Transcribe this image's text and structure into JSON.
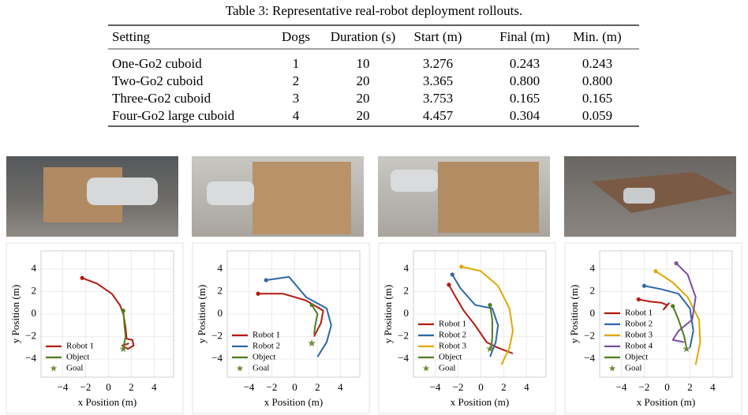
{
  "table": {
    "caption": "Table 3: Representative real-robot deployment rollouts.",
    "header": [
      "Setting",
      "Dogs",
      "Duration (s)",
      "Start (m)",
      "Final (m)",
      "Min. (m)"
    ],
    "rows": [
      [
        "One-Go2 cuboid",
        "1",
        "10",
        "3.276",
        "0.243",
        "0.243"
      ],
      [
        "Two-Go2 cuboid",
        "2",
        "20",
        "3.365",
        "0.800",
        "0.800"
      ],
      [
        "Three-Go2 cuboid",
        "3",
        "20",
        "3.753",
        "0.165",
        "0.165"
      ],
      [
        "Four-Go2 large cuboid",
        "4",
        "20",
        "4.457",
        "0.304",
        "0.059"
      ]
    ]
  },
  "chart_data": [
    {
      "type": "line",
      "xlabel": "x Position (m)",
      "ylabel": "y Position (m)",
      "xlim": [
        -5.9,
        5.7
      ],
      "ylim": [
        -5.6,
        5.6
      ],
      "grid": true,
      "legend": "lower left",
      "xticks": [
        {
          "value": -4,
          "label": "−4"
        },
        {
          "value": -2,
          "label": "−2"
        },
        0,
        2,
        4
      ],
      "yticks": [
        {
          "value": -4,
          "label": "−4"
        },
        {
          "value": -2,
          "label": "−2"
        },
        0,
        2,
        4
      ],
      "series": [
        {
          "name": "Robot 1",
          "color": "#b5190f",
          "x": [
            -2.3,
            -1,
            0.3,
            1,
            1.3,
            1.5,
            1.6,
            2.1,
            2.2,
            1.7,
            1.2,
            1.8
          ],
          "values": [
            3.2,
            2.7,
            1.8,
            0.8,
            0,
            -1.2,
            -2.2,
            -2.3,
            -2.8,
            -3.1,
            -2.8,
            -2.6
          ]
        },
        {
          "name": "Object",
          "color": "#4e7d1c",
          "x": [
            1.3,
            1.4,
            1.5,
            1.3
          ],
          "values": [
            0.3,
            -1,
            -2,
            -3
          ]
        }
      ],
      "goal": {
        "name": "Goal",
        "color": "#6b8e3a",
        "x": 1.3,
        "y": -3.1
      }
    },
    {
      "type": "line",
      "xlabel": "x Position (m)",
      "ylabel": "y Position (m)",
      "xlim": [
        -5.9,
        5.7
      ],
      "ylim": [
        -5.6,
        5.6
      ],
      "grid": true,
      "legend": "lower left",
      "xticks": [
        {
          "value": -4,
          "label": "−4"
        },
        {
          "value": -2,
          "label": "−2"
        },
        0,
        2,
        4
      ],
      "yticks": [
        {
          "value": -4,
          "label": "−4"
        },
        {
          "value": -2,
          "label": "−2"
        },
        0,
        2,
        4
      ],
      "series": [
        {
          "name": "Robot 1",
          "color": "#b5190f",
          "x": [
            -3.2,
            -1,
            1,
            2.5,
            2.3,
            1.7
          ],
          "values": [
            1.8,
            1.8,
            1.2,
            0.3,
            -0.8,
            -2
          ]
        },
        {
          "name": "Robot 2",
          "color": "#2e66a8",
          "x": [
            -2.5,
            -0.5,
            1,
            2.8,
            3.2,
            2.8,
            2
          ],
          "values": [
            3,
            3.3,
            1.5,
            0.5,
            -1,
            -2.5,
            -3.8
          ]
        },
        {
          "name": "Object",
          "color": "#4e7d1c",
          "x": [
            1.5,
            2,
            1.8,
            1.7
          ],
          "values": [
            0.8,
            0,
            -1,
            -1.8
          ]
        }
      ],
      "goal": {
        "name": "Goal",
        "color": "#6b8e3a",
        "x": 1.5,
        "y": -2.6
      }
    },
    {
      "type": "line",
      "xlabel": "x Position (m)",
      "ylabel": "y Position (m)",
      "xlim": [
        -5.9,
        5.7
      ],
      "ylim": [
        -5.6,
        5.6
      ],
      "grid": true,
      "legend": "lower left",
      "xticks": [
        {
          "value": -4,
          "label": "−4"
        },
        {
          "value": -2,
          "label": "−2"
        },
        0,
        2,
        4
      ],
      "yticks": [
        {
          "value": -4,
          "label": "−4"
        },
        {
          "value": -2,
          "label": "−2"
        },
        0,
        2,
        4
      ],
      "series": [
        {
          "name": "Robot 1",
          "color": "#b5190f",
          "x": [
            -2.8,
            -2.2,
            -1.5,
            -0.5,
            0.5,
            1.5,
            2.8
          ],
          "values": [
            2.6,
            1.5,
            0.3,
            -1,
            -2.5,
            -3,
            -3.5
          ]
        },
        {
          "name": "Robot 2",
          "color": "#2e66a8",
          "x": [
            -2.5,
            -1.8,
            -0.5,
            1,
            1.5,
            1.3,
            0.8
          ],
          "values": [
            3.5,
            2.3,
            0.8,
            0.5,
            -1,
            -2.5,
            -3.8
          ]
        },
        {
          "name": "Robot 3",
          "color": "#e0a800",
          "x": [
            -1.7,
            0,
            1.5,
            2.5,
            2.8,
            2.5,
            1.8
          ],
          "values": [
            4.2,
            3.8,
            2.5,
            0.5,
            -1.5,
            -3,
            -4.5
          ]
        },
        {
          "name": "Object",
          "color": "#4e7d1c",
          "x": [
            0.8,
            1,
            1,
            0.9
          ],
          "values": [
            0.8,
            -0.5,
            -2,
            -3.1
          ]
        }
      ],
      "goal": {
        "name": "Goal",
        "color": "#6b8e3a",
        "x": 0.8,
        "y": -3.1
      }
    },
    {
      "type": "line",
      "xlabel": "x Position (m)",
      "ylabel": "y Position (m)",
      "xlim": [
        -5.9,
        5.7
      ],
      "ylim": [
        -5.6,
        5.6
      ],
      "grid": true,
      "legend": "lower left",
      "xticks": [
        {
          "value": -4,
          "label": "−4"
        },
        {
          "value": -2,
          "label": "−2"
        },
        0,
        2,
        4
      ],
      "yticks": [
        {
          "value": -4,
          "label": "−4"
        },
        {
          "value": -2,
          "label": "−2"
        },
        0,
        2,
        4
      ],
      "series": [
        {
          "name": "Robot 1",
          "color": "#b5190f",
          "x": [
            -2.5,
            -1.5,
            -0.5,
            0,
            -0.3,
            0.2
          ],
          "values": [
            1.3,
            1.1,
            1,
            0.8,
            0.4,
            1
          ]
        },
        {
          "name": "Robot 2",
          "color": "#2e66a8",
          "x": [
            -2,
            -0.5,
            1,
            2,
            2.3,
            2
          ],
          "values": [
            2.5,
            2.2,
            1.8,
            0.5,
            -1.5,
            -3
          ]
        },
        {
          "name": "Robot 3",
          "color": "#e0a800",
          "x": [
            -1,
            0.5,
            1.8,
            2.8,
            2.9,
            2.5
          ],
          "values": [
            3.8,
            2.8,
            1.5,
            -0.5,
            -2.5,
            -4.5
          ]
        },
        {
          "name": "Robot 4",
          "color": "#7b4ea3",
          "x": [
            0.8,
            1.8,
            2.5,
            2.2,
            1,
            0.5,
            1.5
          ],
          "values": [
            4.5,
            3.5,
            1.5,
            -0.5,
            -1.5,
            -2.3,
            -2.5
          ]
        },
        {
          "name": "Object",
          "color": "#4e7d1c",
          "x": [
            0.5,
            1,
            1.5,
            1.7
          ],
          "values": [
            0.7,
            -0.5,
            -2,
            -3
          ]
        }
      ],
      "goal": {
        "name": "Goal",
        "color": "#6b8e3a",
        "x": 1.7,
        "y": -3.1
      }
    }
  ]
}
